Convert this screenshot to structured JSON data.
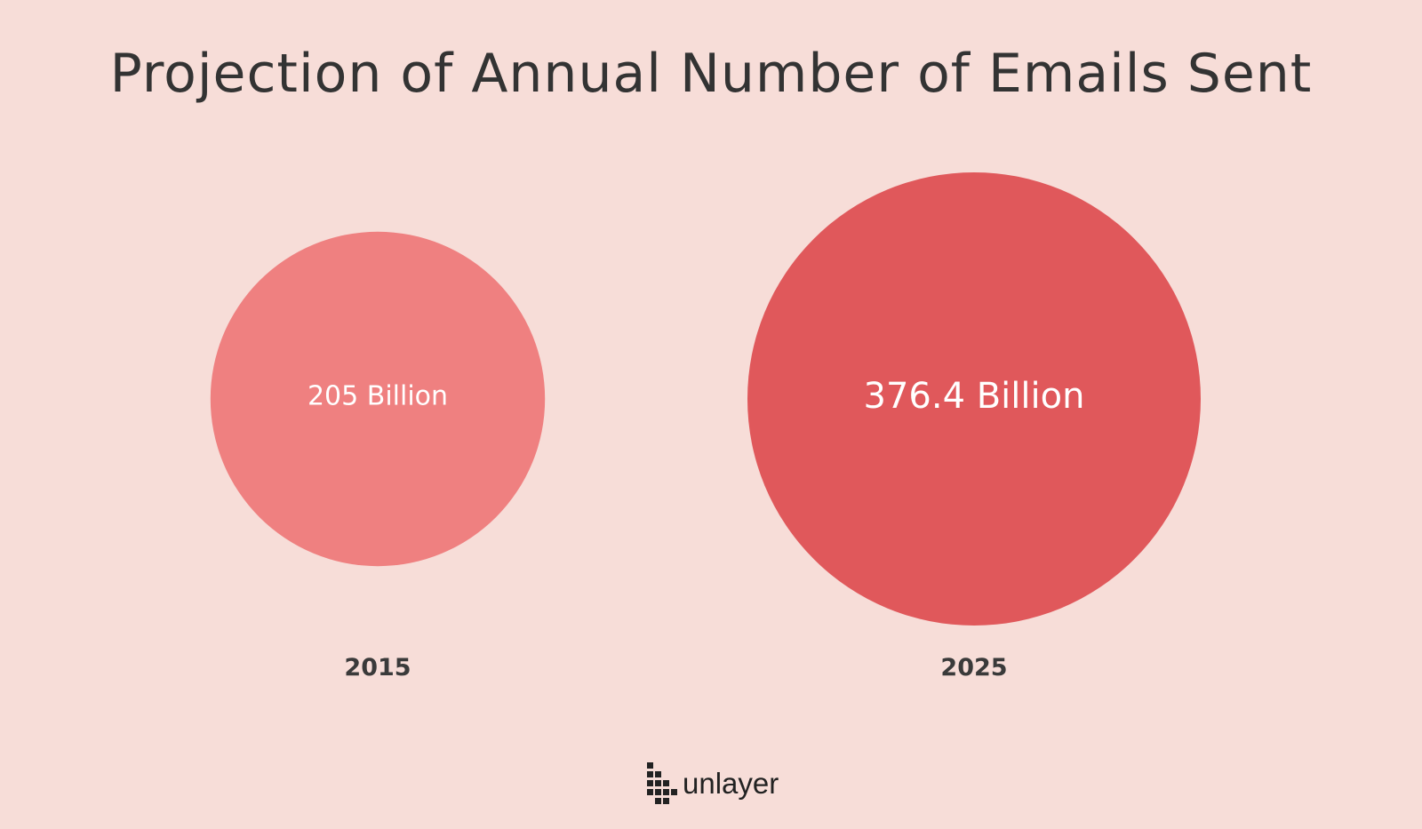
{
  "colors": {
    "background": "#f7ddd8",
    "title_text": "#333333",
    "bubble_2015": "#ef8080",
    "bubble_2025": "#e0585b",
    "bubble_label": "#ffffff",
    "year_label": "#3a3a3a",
    "brand_text": "#222222"
  },
  "brand": {
    "name": "unlayer",
    "icon": "unlayer-logo-grid-icon"
  },
  "chart_data": {
    "type": "bubble",
    "title": "Projection of Annual Number of Emails Sent",
    "categories": [
      "2015",
      "2025"
    ],
    "values": [
      205,
      376.4
    ],
    "unit": "Billion",
    "value_labels": [
      "205 Billion",
      "376.4 Billion"
    ],
    "area_proportional": true,
    "legend": "none",
    "grid": false
  }
}
